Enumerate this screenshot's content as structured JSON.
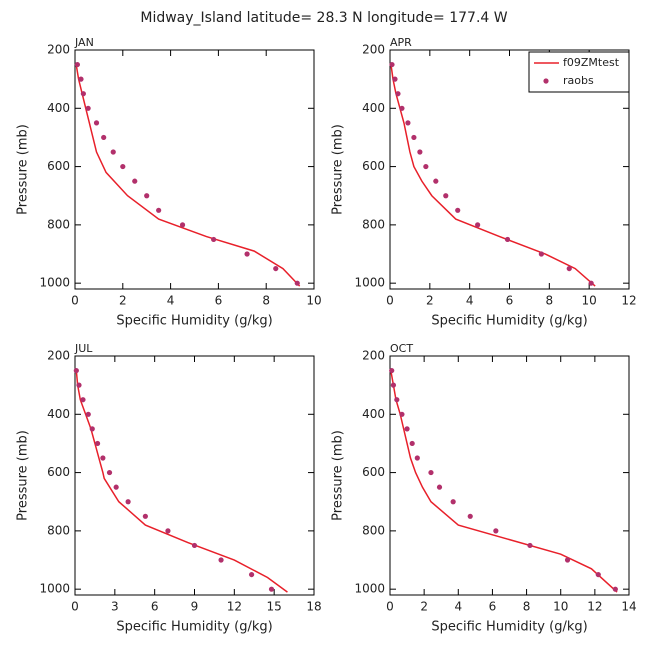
{
  "title": "Midway_Island  latitude= 28.3 N longitude= 177.4 W",
  "chart_data": [
    {
      "type": "line",
      "title": "JAN",
      "xlabel": "Specific Humidity (g/kg)",
      "ylabel": "Pressure (mb)",
      "xlim": [
        0,
        10
      ],
      "xticks": [
        0,
        2,
        4,
        6,
        8,
        10
      ],
      "ylim": [
        1020,
        200
      ],
      "yticks": [
        200,
        400,
        600,
        800,
        1000
      ],
      "series": [
        {
          "style": "line",
          "color": "#e8202a",
          "x": [
            0.05,
            0.15,
            0.3,
            0.45,
            0.6,
            0.75,
            0.9,
            1.3,
            2.2,
            3.5,
            5.5,
            7.5,
            8.7,
            9.4
          ],
          "values": [
            250,
            300,
            350,
            400,
            450,
            500,
            550,
            620,
            700,
            780,
            840,
            890,
            950,
            1010
          ]
        },
        {
          "style": "marker",
          "color": "#b2306b",
          "x": [
            0.1,
            0.25,
            0.35,
            0.55,
            0.9,
            1.2,
            1.6,
            2.0,
            2.5,
            3.0,
            3.5,
            4.5,
            5.8,
            7.2,
            8.4,
            9.3
          ],
          "values": [
            250,
            300,
            350,
            400,
            450,
            500,
            550,
            600,
            650,
            700,
            750,
            800,
            850,
            900,
            950,
            1000
          ]
        }
      ]
    },
    {
      "type": "line",
      "title": "APR",
      "xlabel": "Specific Humidity (g/kg)",
      "ylabel": "Pressure (mb)",
      "xlim": [
        0,
        12
      ],
      "xticks": [
        0,
        2,
        4,
        6,
        8,
        10,
        12
      ],
      "ylim": [
        1020,
        200
      ],
      "yticks": [
        200,
        400,
        600,
        800,
        1000
      ],
      "legend": "upper right",
      "series": [
        {
          "name": "f09ZMtest",
          "style": "line",
          "color": "#e8202a",
          "x": [
            0.05,
            0.15,
            0.3,
            0.5,
            0.7,
            0.85,
            1.0,
            1.2,
            1.6,
            2.1,
            3.3,
            5.5,
            7.8,
            9.3,
            10.3
          ],
          "values": [
            250,
            300,
            350,
            400,
            450,
            500,
            550,
            600,
            650,
            700,
            780,
            840,
            900,
            950,
            1010
          ]
        },
        {
          "name": "raobs",
          "style": "marker",
          "color": "#b2306b",
          "x": [
            0.1,
            0.25,
            0.4,
            0.6,
            0.9,
            1.2,
            1.5,
            1.8,
            2.3,
            2.8,
            3.4,
            4.4,
            5.9,
            7.6,
            9.0,
            10.1
          ],
          "values": [
            250,
            300,
            350,
            400,
            450,
            500,
            550,
            600,
            650,
            700,
            750,
            800,
            850,
            900,
            950,
            1000
          ]
        }
      ]
    },
    {
      "type": "line",
      "title": "JUL",
      "xlabel": "Specific Humidity (g/kg)",
      "ylabel": "Pressure (mb)",
      "xlim": [
        0,
        18
      ],
      "xticks": [
        0,
        3,
        6,
        9,
        12,
        15,
        18
      ],
      "ylim": [
        1020,
        200
      ],
      "yticks": [
        200,
        400,
        600,
        800,
        1000
      ],
      "series": [
        {
          "style": "line",
          "color": "#e8202a",
          "x": [
            0.1,
            0.2,
            0.4,
            0.8,
            1.2,
            1.5,
            1.8,
            2.1,
            2.2,
            3.3,
            5.3,
            8.5,
            12.0,
            14.5,
            16.0
          ],
          "values": [
            250,
            300,
            350,
            400,
            450,
            500,
            550,
            600,
            620,
            700,
            780,
            840,
            900,
            960,
            1010
          ]
        },
        {
          "style": "marker",
          "color": "#b2306b",
          "x": [
            0.1,
            0.3,
            0.6,
            1.0,
            1.3,
            1.7,
            2.1,
            2.6,
            3.1,
            4.0,
            5.3,
            7.0,
            9.0,
            11.0,
            13.3,
            14.8
          ],
          "values": [
            250,
            300,
            350,
            400,
            450,
            500,
            550,
            600,
            650,
            700,
            750,
            800,
            850,
            900,
            950,
            1000
          ]
        }
      ]
    },
    {
      "type": "line",
      "title": "OCT",
      "xlabel": "Specific Humidity (g/kg)",
      "ylabel": "Pressure (mb)",
      "xlim": [
        0,
        14
      ],
      "xticks": [
        0,
        2,
        4,
        6,
        8,
        10,
        12,
        14
      ],
      "ylim": [
        1020,
        200
      ],
      "yticks": [
        200,
        400,
        600,
        800,
        1000
      ],
      "series": [
        {
          "style": "line",
          "color": "#e8202a",
          "x": [
            0.05,
            0.2,
            0.35,
            0.6,
            0.8,
            1.0,
            1.2,
            1.5,
            1.9,
            2.4,
            4.0,
            7.0,
            10.0,
            11.8,
            13.3
          ],
          "values": [
            250,
            300,
            350,
            400,
            450,
            500,
            550,
            600,
            650,
            700,
            780,
            830,
            880,
            930,
            1010
          ]
        },
        {
          "style": "marker",
          "color": "#b2306b",
          "x": [
            0.1,
            0.2,
            0.4,
            0.7,
            1.0,
            1.3,
            1.6,
            2.4,
            2.9,
            3.7,
            4.7,
            6.2,
            8.2,
            10.4,
            12.2,
            13.2
          ],
          "values": [
            250,
            300,
            350,
            400,
            450,
            500,
            550,
            600,
            650,
            700,
            750,
            800,
            850,
            900,
            950,
            1000
          ]
        }
      ]
    }
  ]
}
